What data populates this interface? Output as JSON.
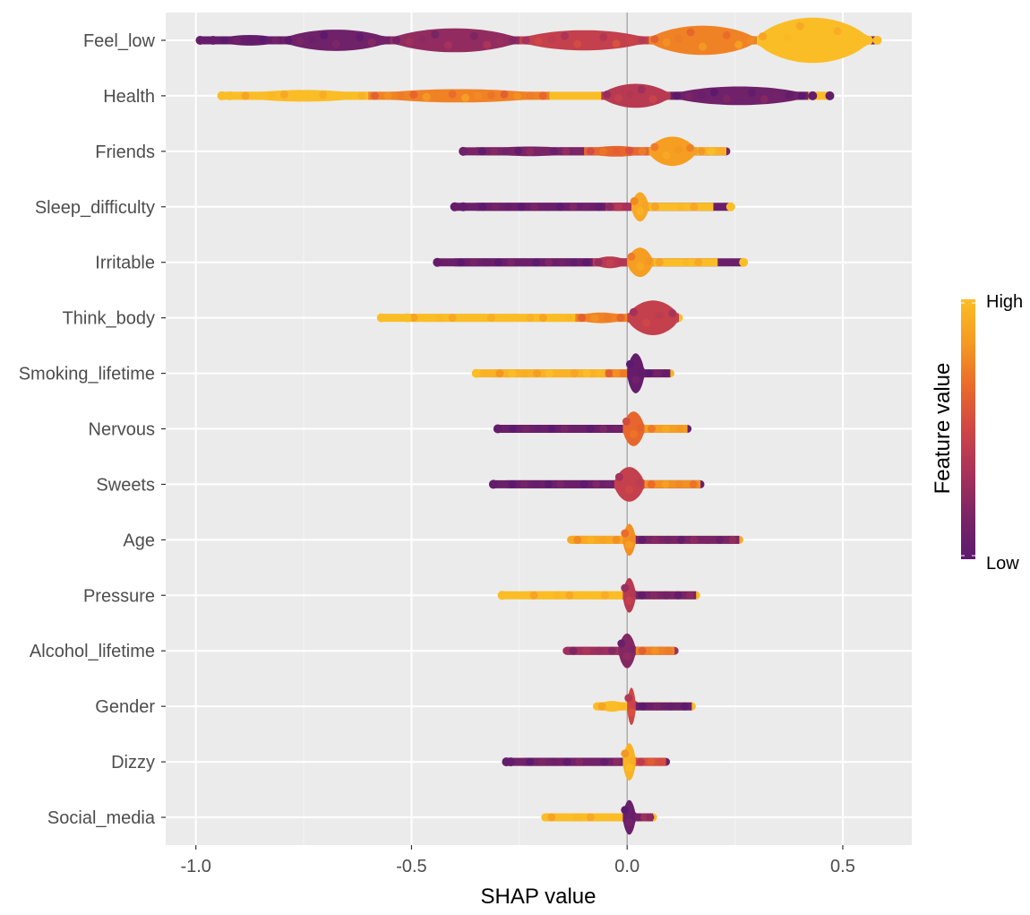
{
  "chart_data": {
    "type": "beeswarm",
    "title": "",
    "xlabel": "SHAP value",
    "ylabel": "",
    "xlim": [
      -1.07,
      0.66
    ],
    "xticks": [
      -1.0,
      -0.5,
      0.0,
      0.5
    ],
    "xtick_labels": [
      "-1.0",
      "-0.5",
      "0.0",
      "0.5"
    ],
    "grid": true,
    "reference_line_x": 0.0,
    "legend": {
      "title": "Feature value",
      "high_label": "High",
      "low_label": "Low",
      "placement": "right",
      "colors": [
        "#5c1a6e",
        "#7b2565",
        "#a8325a",
        "#cf4646",
        "#ea6a2a",
        "#f59a22",
        "#fbbd26"
      ]
    },
    "features": [
      {
        "name": "Feel_low",
        "min": -0.99,
        "max": 0.58,
        "segments": [
          [
            -0.95,
            -0.8,
            0.2,
            0.05
          ],
          [
            -0.8,
            -0.55,
            0.4,
            0.1
          ],
          [
            -0.55,
            -0.25,
            0.45,
            0.25
          ],
          [
            -0.25,
            0.05,
            0.38,
            0.45
          ],
          [
            0.05,
            0.3,
            0.55,
            0.75
          ],
          [
            0.3,
            0.56,
            0.85,
            1.0
          ]
        ],
        "outliers": [
          [
            -0.99,
            0.05
          ],
          [
            -0.96,
            0.05
          ],
          [
            0.56,
            1.0
          ],
          [
            0.58,
            1.0
          ]
        ]
      },
      {
        "name": "Health",
        "min": -0.94,
        "max": 0.47,
        "segments": [
          [
            -0.9,
            -0.6,
            0.22,
            1.0
          ],
          [
            -0.6,
            -0.18,
            0.25,
            0.75
          ],
          [
            -0.06,
            0.1,
            0.45,
            0.4
          ],
          [
            0.1,
            0.42,
            0.35,
            0.1
          ]
        ],
        "outliers": [
          [
            -0.94,
            1.0
          ],
          [
            -0.92,
            1.0
          ],
          [
            0.43,
            0.05
          ],
          [
            0.47,
            0.05
          ]
        ]
      },
      {
        "name": "Friends",
        "min": -0.38,
        "max": 0.23,
        "segments": [
          [
            -0.35,
            -0.1,
            0.18,
            0.15
          ],
          [
            -0.1,
            0.05,
            0.2,
            0.65
          ],
          [
            0.05,
            0.16,
            0.55,
            0.85
          ],
          [
            0.16,
            0.23,
            0.15,
            0.95
          ]
        ],
        "outliers": [
          [
            -0.38,
            0.1
          ]
        ]
      },
      {
        "name": "Sleep_difficulty",
        "min": -0.4,
        "max": 0.24,
        "segments": [
          [
            -0.35,
            -0.05,
            0.12,
            0.08
          ],
          [
            -0.05,
            0.01,
            0.16,
            0.35
          ],
          [
            0.01,
            0.05,
            0.55,
            0.9
          ],
          [
            0.05,
            0.2,
            0.15,
            1.0
          ]
        ],
        "outliers": [
          [
            -0.4,
            0.05
          ],
          [
            -0.38,
            0.05
          ],
          [
            0.24,
            1.0
          ]
        ]
      },
      {
        "name": "Irritable",
        "min": -0.44,
        "max": 0.27,
        "segments": [
          [
            -0.4,
            -0.08,
            0.12,
            0.08
          ],
          [
            -0.08,
            0.0,
            0.22,
            0.4
          ],
          [
            0.0,
            0.06,
            0.55,
            0.85
          ],
          [
            0.06,
            0.21,
            0.14,
            1.0
          ]
        ],
        "outliers": [
          [
            -0.44,
            0.05
          ],
          [
            0.27,
            1.0
          ]
        ]
      },
      {
        "name": "Think_body",
        "min": -0.57,
        "max": 0.12,
        "segments": [
          [
            -0.51,
            -0.12,
            0.13,
            1.0
          ],
          [
            -0.12,
            0.0,
            0.2,
            0.75
          ],
          [
            0.0,
            0.12,
            0.65,
            0.45
          ]
        ],
        "outliers": [
          [
            -0.57,
            1.0
          ],
          [
            -0.51,
            1.0
          ]
        ]
      },
      {
        "name": "Smoking_lifetime",
        "min": -0.35,
        "max": 0.1,
        "segments": [
          [
            -0.31,
            -0.05,
            0.12,
            0.95
          ],
          [
            -0.05,
            0.0,
            0.14,
            0.75
          ],
          [
            0.0,
            0.04,
            0.75,
            0.05
          ],
          [
            0.04,
            0.1,
            0.14,
            0.08
          ]
        ],
        "outliers": [
          [
            -0.35,
            1.0
          ]
        ]
      },
      {
        "name": "Nervous",
        "min": -0.3,
        "max": 0.14,
        "segments": [
          [
            -0.28,
            -0.01,
            0.14,
            0.08
          ],
          [
            -0.01,
            0.04,
            0.65,
            0.65
          ],
          [
            0.04,
            0.14,
            0.14,
            0.85
          ]
        ],
        "outliers": [
          [
            -0.3,
            0.05
          ]
        ]
      },
      {
        "name": "Sweets",
        "min": -0.31,
        "max": 0.17,
        "segments": [
          [
            -0.28,
            -0.03,
            0.14,
            0.08
          ],
          [
            -0.03,
            0.04,
            0.65,
            0.45
          ],
          [
            0.04,
            0.17,
            0.15,
            0.8
          ]
        ],
        "outliers": [
          [
            -0.31,
            0.05
          ]
        ]
      },
      {
        "name": "Age",
        "min": -0.13,
        "max": 0.26,
        "segments": [
          [
            -0.13,
            -0.01,
            0.15,
            0.9
          ],
          [
            -0.01,
            0.02,
            0.6,
            0.8
          ],
          [
            0.02,
            0.26,
            0.15,
            0.15
          ]
        ],
        "outliers": []
      },
      {
        "name": "Pressure",
        "min": -0.29,
        "max": 0.16,
        "segments": [
          [
            -0.23,
            -0.01,
            0.14,
            1.0
          ],
          [
            -0.01,
            0.02,
            0.65,
            0.4
          ],
          [
            0.02,
            0.16,
            0.15,
            0.15
          ]
        ],
        "outliers": [
          [
            -0.29,
            1.0
          ]
        ]
      },
      {
        "name": "Alcohol_lifetime",
        "min": -0.14,
        "max": 0.11,
        "segments": [
          [
            -0.14,
            -0.02,
            0.14,
            0.3
          ],
          [
            -0.02,
            0.02,
            0.65,
            0.2
          ],
          [
            0.02,
            0.11,
            0.14,
            0.75
          ]
        ],
        "outliers": []
      },
      {
        "name": "Gender",
        "min": -0.07,
        "max": 0.15,
        "segments": [
          [
            -0.07,
            0.0,
            0.2,
            1.0
          ],
          [
            0.0,
            0.02,
            0.7,
            0.5
          ],
          [
            0.02,
            0.15,
            0.15,
            0.08
          ]
        ],
        "outliers": []
      },
      {
        "name": "Dizzy",
        "min": -0.28,
        "max": 0.09,
        "segments": [
          [
            -0.24,
            -0.01,
            0.14,
            0.12
          ],
          [
            -0.01,
            0.02,
            0.7,
            0.95
          ],
          [
            0.02,
            0.09,
            0.14,
            0.55
          ]
        ],
        "outliers": [
          [
            -0.28,
            0.05
          ],
          [
            -0.27,
            0.05
          ]
        ]
      },
      {
        "name": "Social_media",
        "min": -0.19,
        "max": 0.06,
        "segments": [
          [
            -0.19,
            -0.01,
            0.14,
            1.0
          ],
          [
            -0.01,
            0.02,
            0.65,
            0.08
          ],
          [
            0.02,
            0.06,
            0.14,
            0.25
          ]
        ],
        "outliers": []
      }
    ]
  }
}
